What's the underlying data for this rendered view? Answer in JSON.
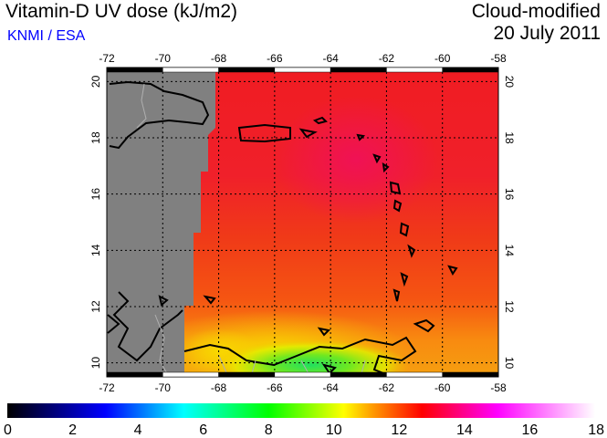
{
  "header": {
    "title": "Vitamin-D UV dose (kJ/m2)",
    "source": "KNMI / ESA",
    "mode": "Cloud-modified",
    "date": "20 July 2011"
  },
  "map": {
    "lon_ticks": [
      "-72",
      "-70",
      "-68",
      "-66",
      "-64",
      "-62",
      "-60",
      "-58"
    ],
    "lat_ticks": [
      "10",
      "12",
      "14",
      "16",
      "18",
      "20"
    ],
    "lon_range": [
      -72,
      -58
    ],
    "lat_range": [
      9.5,
      20.5
    ],
    "no_data_color": "#808080"
  },
  "colorbar": {
    "ticks": [
      "0",
      "2",
      "4",
      "6",
      "8",
      "10",
      "12",
      "14",
      "16",
      "18"
    ],
    "range": [
      0,
      18
    ],
    "stops": [
      {
        "value": 0,
        "color": "#000000"
      },
      {
        "value": 3,
        "color": "#0000ff"
      },
      {
        "value": 5.4,
        "color": "#00ffff"
      },
      {
        "value": 8,
        "color": "#00ff00"
      },
      {
        "value": 10.3,
        "color": "#ffff00"
      },
      {
        "value": 11.2,
        "color": "#ff9900"
      },
      {
        "value": 12.7,
        "color": "#ff0000"
      },
      {
        "value": 15,
        "color": "#ff00ff"
      },
      {
        "value": 18,
        "color": "#ffffff"
      }
    ]
  }
}
